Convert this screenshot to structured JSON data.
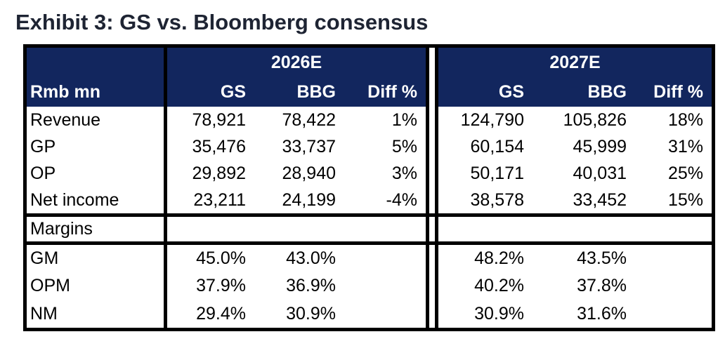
{
  "exhibit": {
    "title": "Exhibit 3: GS vs. Bloomberg consensus"
  },
  "table": {
    "unit_label": "Rmb mn",
    "groups": [
      {
        "label": "2026E"
      },
      {
        "label": "2027E"
      }
    ],
    "columns": {
      "gs": "GS",
      "bbg": "BBG",
      "diff": "Diff %"
    },
    "financial_rows": [
      {
        "label": "Revenue",
        "y2026": {
          "gs": "78,921",
          "bbg": "78,422",
          "diff": "1%"
        },
        "y2027": {
          "gs": "124,790",
          "bbg": "105,826",
          "diff": "18%"
        }
      },
      {
        "label": "GP",
        "y2026": {
          "gs": "35,476",
          "bbg": "33,737",
          "diff": "5%"
        },
        "y2027": {
          "gs": "60,154",
          "bbg": "45,999",
          "diff": "31%"
        }
      },
      {
        "label": "OP",
        "y2026": {
          "gs": "29,892",
          "bbg": "28,940",
          "diff": "3%"
        },
        "y2027": {
          "gs": "50,171",
          "bbg": "40,031",
          "diff": "25%"
        }
      },
      {
        "label": "Net income",
        "y2026": {
          "gs": "23,211",
          "bbg": "24,199",
          "diff": "-4%"
        },
        "y2027": {
          "gs": "38,578",
          "bbg": "33,452",
          "diff": "15%"
        }
      }
    ],
    "margins_section_label": "Margins",
    "margin_rows": [
      {
        "label": "GM",
        "y2026": {
          "gs": "45.0%",
          "bbg": "43.0%"
        },
        "y2027": {
          "gs": "48.2%",
          "bbg": "43.5%"
        }
      },
      {
        "label": "OPM",
        "y2026": {
          "gs": "37.9%",
          "bbg": "36.9%"
        },
        "y2027": {
          "gs": "40.2%",
          "bbg": "37.8%"
        }
      },
      {
        "label": "NM",
        "y2026": {
          "gs": "29.4%",
          "bbg": "30.9%"
        },
        "y2027": {
          "gs": "30.9%",
          "bbg": "31.6%"
        }
      }
    ]
  },
  "colors": {
    "header_navy": "#12265E",
    "border_black": "#000000",
    "title_color": "#1E2433"
  },
  "chart_data": {
    "type": "table",
    "title": "Exhibit 3: GS vs. Bloomberg consensus",
    "unit": "Rmb mn",
    "column_groups": [
      "2026E",
      "2027E"
    ],
    "columns": [
      "Rmb mn",
      "2026E GS",
      "2026E BBG",
      "2026E Diff %",
      "2027E GS",
      "2027E BBG",
      "2027E Diff %"
    ],
    "rows": [
      [
        "Revenue",
        78921,
        78422,
        "1%",
        124790,
        105826,
        "18%"
      ],
      [
        "GP",
        35476,
        33737,
        "5%",
        60154,
        45999,
        "31%"
      ],
      [
        "OP",
        29892,
        28940,
        "3%",
        50171,
        40031,
        "25%"
      ],
      [
        "Net income",
        23211,
        24199,
        "-4%",
        38578,
        33452,
        "15%"
      ],
      [
        "Margins",
        null,
        null,
        null,
        null,
        null,
        null
      ],
      [
        "GM",
        "45.0%",
        "43.0%",
        null,
        "48.2%",
        "43.5%",
        null
      ],
      [
        "OPM",
        "37.9%",
        "36.9%",
        null,
        "40.2%",
        "37.8%",
        null
      ],
      [
        "NM",
        "29.4%",
        "30.9%",
        null,
        "30.9%",
        "31.6%",
        null
      ]
    ]
  }
}
